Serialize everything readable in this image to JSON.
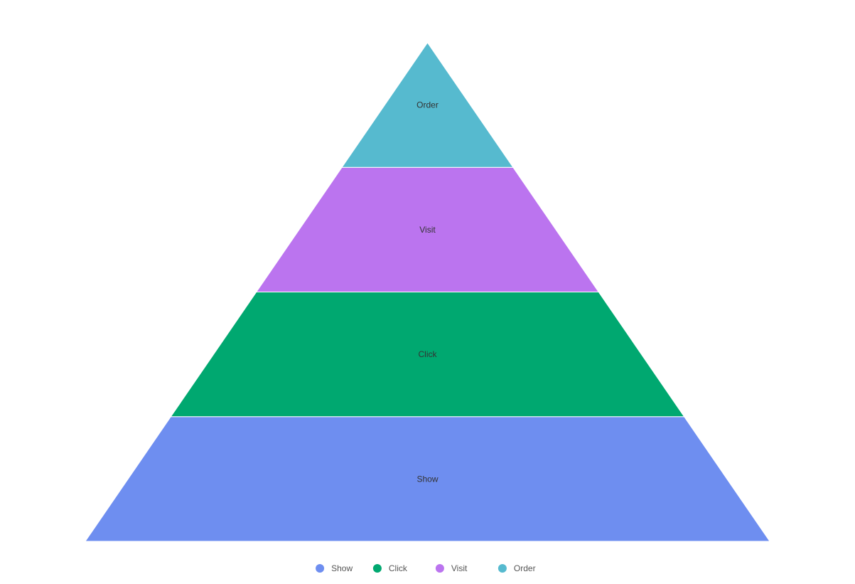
{
  "chart_data": {
    "type": "pyramid",
    "title": "",
    "categories": [
      "Show",
      "Click",
      "Visit",
      "Order"
    ],
    "series": [
      {
        "values": [
          1,
          1,
          1,
          1
        ]
      }
    ],
    "colors": {
      "Show": "#6e8ef0",
      "Click": "#00a870",
      "Visit": "#bb74ef",
      "Order": "#56bacf"
    },
    "label_color": "#333333",
    "legend": {
      "position": "bottom-center",
      "items": [
        "Show",
        "Click",
        "Visit",
        "Order"
      ],
      "marker": "circle"
    }
  }
}
